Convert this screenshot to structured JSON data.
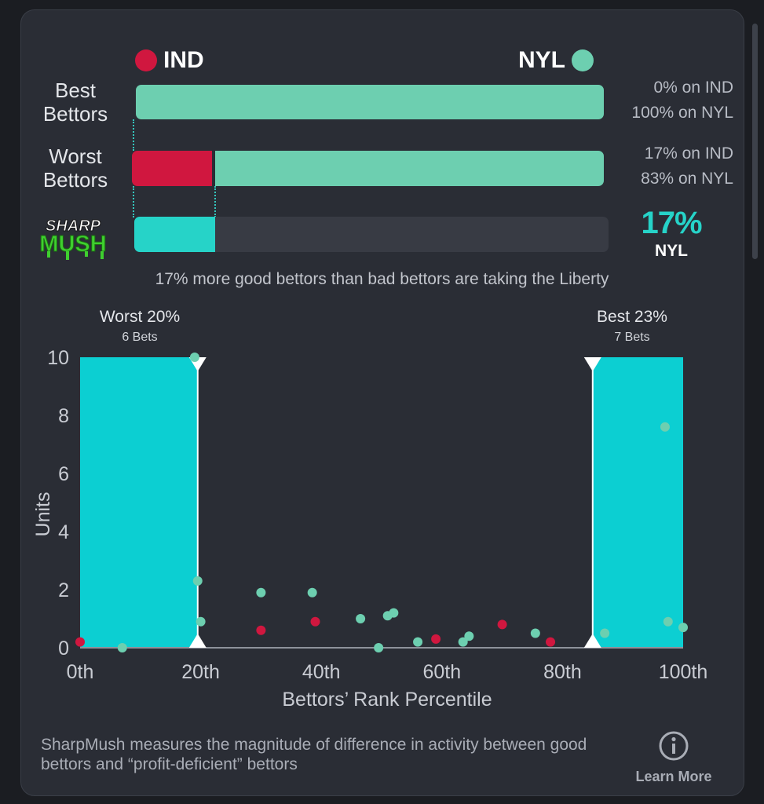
{
  "teams": {
    "left": {
      "code": "IND",
      "color": "#d0173f"
    },
    "right": {
      "code": "NYL",
      "color": "#6dcfb0"
    }
  },
  "rows": [
    {
      "label_line1": "Best",
      "label_line2": "Bettors",
      "left_share": 0,
      "right_share": 100,
      "left_text": "0% on IND",
      "right_text": "100% on NYL"
    },
    {
      "label_line1": "Worst",
      "label_line2": "Bettors",
      "left_share": 17,
      "right_share": 83,
      "left_text": "17% on IND",
      "right_text": "83% on NYL"
    }
  ],
  "sharp_mush": {
    "logo_line1": "SHARP",
    "logo_line2": "MUSH",
    "value": 17,
    "value_text": "17%",
    "team": "NYL",
    "color": "#26d3c8",
    "summary": "17% more good bettors than bad bettors are taking the Liberty"
  },
  "zones": {
    "worst": {
      "title": "Worst 20%",
      "subtitle": "6 Bets",
      "from": 0,
      "to": 20
    },
    "best": {
      "title": "Best 23%",
      "subtitle": "7 Bets",
      "from": 85,
      "to": 100
    }
  },
  "chart_data": {
    "type": "scatter",
    "title": "",
    "xlabel": "Bettors’ Rank Percentile",
    "ylabel": "Units",
    "xlim": [
      0,
      100
    ],
    "ylim": [
      0,
      10
    ],
    "x_ticks": [
      {
        "value": 0,
        "label": "0th"
      },
      {
        "value": 20,
        "label": "20th"
      },
      {
        "value": 40,
        "label": "40th"
      },
      {
        "value": 60,
        "label": "60th"
      },
      {
        "value": 80,
        "label": "80th"
      },
      {
        "value": 100,
        "label": "100th"
      }
    ],
    "y_ticks": [
      0,
      2,
      4,
      6,
      8,
      10
    ],
    "highlight_ranges": [
      {
        "name": "Worst 20%",
        "from": 0,
        "to": 19.5,
        "color": "#0ccfd2"
      },
      {
        "name": "Best 23%",
        "from": 85,
        "to": 100,
        "color": "#0ccfd2"
      }
    ],
    "markers": [
      19.5,
      85
    ],
    "series": [
      {
        "name": "IND",
        "color": "#d0173f",
        "points": [
          [
            0,
            0.2
          ],
          [
            30,
            0.6
          ],
          [
            39,
            0.9
          ],
          [
            59,
            0.3
          ],
          [
            70,
            0.8
          ],
          [
            78,
            0.2
          ]
        ]
      },
      {
        "name": "NYL",
        "color": "#6dcfb0",
        "points": [
          [
            7,
            0
          ],
          [
            19,
            10
          ],
          [
            19.5,
            2.3
          ],
          [
            20,
            0.9
          ],
          [
            30,
            1.9
          ],
          [
            38.5,
            1.9
          ],
          [
            46.5,
            1
          ],
          [
            49.5,
            0
          ],
          [
            51,
            1.1
          ],
          [
            52,
            1.2
          ],
          [
            56,
            0.2
          ],
          [
            63.5,
            0.2
          ],
          [
            64.5,
            0.4
          ],
          [
            75.5,
            0.5
          ],
          [
            87,
            0.5
          ],
          [
            97,
            7.6
          ],
          [
            97.5,
            0.9
          ],
          [
            100,
            0.7
          ]
        ]
      }
    ]
  },
  "footer": {
    "description": "SharpMush measures the magnitude of difference in activity between good bettors and “profit-deficient” bettors",
    "learn_more": "Learn More"
  }
}
